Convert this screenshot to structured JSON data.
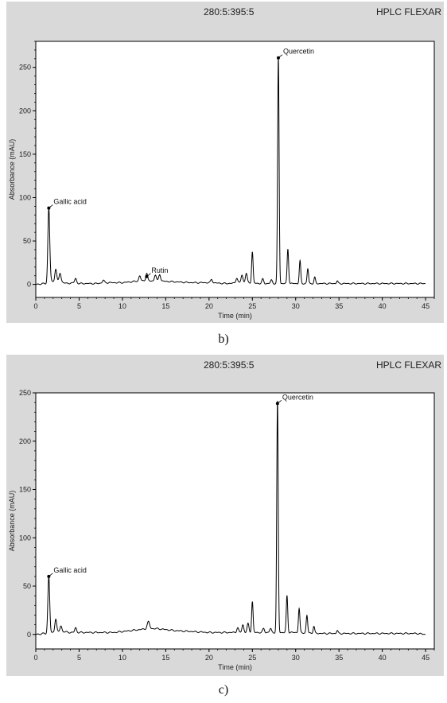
{
  "captions": [
    "b)",
    "c)"
  ],
  "chart_data": [
    {
      "type": "line",
      "header_left": "280:5:395:5",
      "header_right": "HPLC FLEXAR",
      "xlabel": "Time (min)",
      "ylabel": "Absorbance (mAU)",
      "xlim": [
        0,
        46
      ],
      "ylim": [
        -15,
        280
      ],
      "xticks": [
        0,
        5,
        10,
        15,
        20,
        25,
        30,
        35,
        40,
        45
      ],
      "yticks": [
        0,
        50,
        100,
        150,
        200,
        250
      ],
      "baseline_noise": [
        [
          0,
          0
        ],
        [
          0.5,
          0.5
        ],
        [
          1,
          1
        ],
        [
          1.5,
          0
        ],
        [
          1.7,
          6
        ],
        [
          1.9,
          3
        ],
        [
          2.3,
          3
        ],
        [
          2.8,
          4
        ],
        [
          3.5,
          1
        ],
        [
          4.5,
          2
        ],
        [
          5,
          1
        ],
        [
          7,
          1
        ],
        [
          8,
          2
        ],
        [
          10,
          2
        ],
        [
          11,
          3
        ],
        [
          12,
          4
        ],
        [
          14,
          4
        ],
        [
          16,
          3
        ],
        [
          18,
          2
        ],
        [
          20,
          2
        ],
        [
          22,
          1
        ],
        [
          24,
          2
        ],
        [
          26,
          1
        ],
        [
          28,
          1
        ],
        [
          30,
          1
        ],
        [
          33,
          1
        ],
        [
          35,
          1
        ],
        [
          40,
          1
        ],
        [
          45,
          1
        ]
      ],
      "peaks": [
        {
          "t": 1.5,
          "h": 88,
          "w": 0.15
        },
        {
          "t": 2.3,
          "h": 15,
          "w": 0.15
        },
        {
          "t": 2.8,
          "h": 9,
          "w": 0.15
        },
        {
          "t": 4.6,
          "h": 5,
          "w": 0.15
        },
        {
          "t": 7.8,
          "h": 3,
          "w": 0.15
        },
        {
          "t": 12.0,
          "h": 6,
          "w": 0.15
        },
        {
          "t": 12.8,
          "h": 9,
          "w": 0.15
        },
        {
          "t": 13.8,
          "h": 7,
          "w": 0.15
        },
        {
          "t": 14.3,
          "h": 8,
          "w": 0.15
        },
        {
          "t": 20.3,
          "h": 4,
          "w": 0.15
        },
        {
          "t": 23.2,
          "h": 6,
          "w": 0.15
        },
        {
          "t": 23.8,
          "h": 9,
          "w": 0.15
        },
        {
          "t": 24.3,
          "h": 11,
          "w": 0.15
        },
        {
          "t": 25.0,
          "h": 36,
          "w": 0.12
        },
        {
          "t": 26.2,
          "h": 5,
          "w": 0.15
        },
        {
          "t": 27.2,
          "h": 4,
          "w": 0.15
        },
        {
          "t": 28.0,
          "h": 261,
          "w": 0.12
        },
        {
          "t": 29.1,
          "h": 40,
          "w": 0.12
        },
        {
          "t": 30.5,
          "h": 26,
          "w": 0.12
        },
        {
          "t": 31.4,
          "h": 17,
          "w": 0.12
        },
        {
          "t": 32.2,
          "h": 7,
          "w": 0.12
        },
        {
          "t": 34.8,
          "h": 3,
          "w": 0.12
        }
      ],
      "annotations": [
        {
          "label": "Gallic acid",
          "x": 1.5,
          "y": 88
        },
        {
          "label": "Rutin",
          "x": 12.8,
          "y": 9
        },
        {
          "label": "Quercetin",
          "x": 28.0,
          "y": 261
        }
      ]
    },
    {
      "type": "line",
      "header_left": "280:5:395:5",
      "header_right": "HPLC FLEXAR",
      "xlabel": "Time (min)",
      "ylabel": "Absorbance (mAU)",
      "xlim": [
        0,
        46
      ],
      "ylim": [
        -15,
        250
      ],
      "xticks": [
        0,
        5,
        10,
        15,
        20,
        25,
        30,
        35,
        40,
        45
      ],
      "yticks": [
        0,
        50,
        100,
        150,
        200,
        250
      ],
      "baseline_noise": [
        [
          0,
          0
        ],
        [
          0.5,
          0.5
        ],
        [
          1,
          1
        ],
        [
          1.5,
          0
        ],
        [
          2,
          2
        ],
        [
          3,
          3
        ],
        [
          4,
          2
        ],
        [
          5,
          2
        ],
        [
          7,
          2
        ],
        [
          9,
          2
        ],
        [
          10,
          3
        ],
        [
          11,
          4
        ],
        [
          12,
          5
        ],
        [
          13,
          6
        ],
        [
          14,
          6
        ],
        [
          15,
          5
        ],
        [
          16,
          4
        ],
        [
          18,
          3
        ],
        [
          20,
          2
        ],
        [
          22,
          2
        ],
        [
          24,
          2
        ],
        [
          26,
          2
        ],
        [
          28,
          2
        ],
        [
          30,
          2
        ],
        [
          33,
          1
        ],
        [
          35,
          1
        ],
        [
          40,
          1
        ],
        [
          44,
          1
        ],
        [
          45,
          0
        ]
      ],
      "peaks": [
        {
          "t": 1.5,
          "h": 60,
          "w": 0.15
        },
        {
          "t": 2.3,
          "h": 14,
          "w": 0.15
        },
        {
          "t": 2.9,
          "h": 6,
          "w": 0.15
        },
        {
          "t": 4.6,
          "h": 5,
          "w": 0.15
        },
        {
          "t": 13.0,
          "h": 7,
          "w": 0.2
        },
        {
          "t": 23.3,
          "h": 5,
          "w": 0.15
        },
        {
          "t": 23.9,
          "h": 8,
          "w": 0.15
        },
        {
          "t": 24.5,
          "h": 9,
          "w": 0.15
        },
        {
          "t": 25.0,
          "h": 32,
          "w": 0.12
        },
        {
          "t": 26.3,
          "h": 4,
          "w": 0.15
        },
        {
          "t": 27.1,
          "h": 4,
          "w": 0.15
        },
        {
          "t": 27.9,
          "h": 239,
          "w": 0.12
        },
        {
          "t": 29.0,
          "h": 38,
          "w": 0.12
        },
        {
          "t": 30.4,
          "h": 25,
          "w": 0.12
        },
        {
          "t": 31.3,
          "h": 18,
          "w": 0.12
        },
        {
          "t": 32.1,
          "h": 7,
          "w": 0.12
        },
        {
          "t": 34.8,
          "h": 3,
          "w": 0.12
        }
      ],
      "annotations": [
        {
          "label": "Gallic acid",
          "x": 1.5,
          "y": 60
        },
        {
          "label": "Quercetin",
          "x": 27.9,
          "y": 239
        }
      ]
    }
  ],
  "colors": {
    "panel": "#d9d9d9",
    "plot": "#ffffff",
    "line": "#000000"
  }
}
